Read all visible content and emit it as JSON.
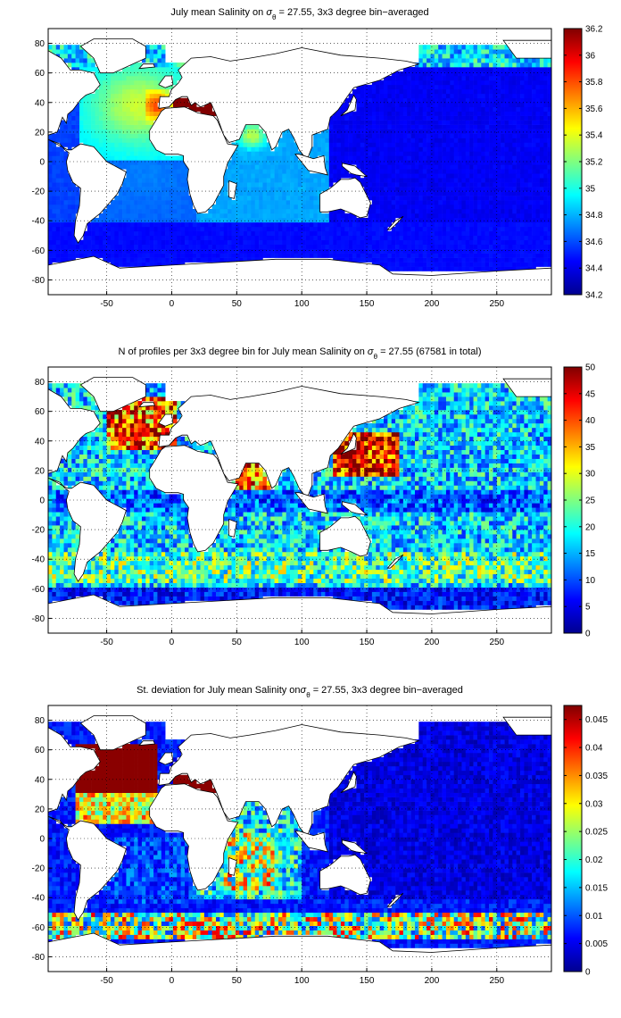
{
  "chart_data": [
    {
      "type": "heatmap",
      "title_parts": [
        "July mean Salinity on ",
        "σ",
        "θ",
        " = 27.55, 3x3 degree bin−averaged"
      ],
      "xlim": [
        -95,
        292
      ],
      "ylim": [
        -90,
        90
      ],
      "xticks": [
        "-50",
        "0",
        "50",
        "100",
        "150",
        "200",
        "250"
      ],
      "yticks": [
        "80",
        "60",
        "40",
        "20",
        "0",
        "-20",
        "-40",
        "-60",
        "-80"
      ],
      "colorbar": {
        "min": 34.2,
        "max": 36.2,
        "ticks": [
          "36.2",
          "36",
          "35.8",
          "35.6",
          "35.4",
          "35.2",
          "35",
          "34.8",
          "34.6",
          "34.4",
          "34.2"
        ]
      },
      "bin_size_deg": 3,
      "regions": [
        {
          "name": "North Atlantic",
          "approx_value": 35.2
        },
        {
          "name": "Mediterranean outflow",
          "approx_value": 35.9
        },
        {
          "name": "Mediterranean Sea",
          "approx_value": 36.2
        },
        {
          "name": "Red Sea",
          "approx_value": 36.2
        },
        {
          "name": "Arabian Sea",
          "approx_value": 35.4
        },
        {
          "name": "Indian Ocean",
          "approx_value": 34.8
        },
        {
          "name": "South Atlantic",
          "approx_value": 34.7
        },
        {
          "name": "Southern Ocean",
          "approx_value": 34.4
        },
        {
          "name": "Pacific Ocean",
          "approx_value": 34.4
        }
      ]
    },
    {
      "type": "heatmap",
      "title_parts": [
        "N of profiles per 3x3 degree bin for July mean Salinity on ",
        "σ",
        "θ",
        " = 27.55 (67581 in total)"
      ],
      "xlim": [
        -95,
        292
      ],
      "ylim": [
        -90,
        90
      ],
      "xticks": [
        "-50",
        "0",
        "50",
        "100",
        "150",
        "200",
        "250"
      ],
      "yticks": [
        "80",
        "60",
        "40",
        "20",
        "0",
        "-20",
        "-40",
        "-60",
        "-80"
      ],
      "colorbar": {
        "min": 0,
        "max": 50,
        "ticks": [
          "50",
          "45",
          "40",
          "35",
          "30",
          "25",
          "20",
          "15",
          "10",
          "5",
          "0"
        ]
      },
      "bin_size_deg": 3,
      "regions": [
        {
          "name": "North Atlantic",
          "approx_value": 40
        },
        {
          "name": "Kuroshio region",
          "approx_value": 45
        },
        {
          "name": "Arabian Sea",
          "approx_value": 35
        },
        {
          "name": "Southern Ocean",
          "approx_value": 20
        },
        {
          "name": "Equatorial Pacific",
          "approx_value": 10
        }
      ]
    },
    {
      "type": "heatmap",
      "title_parts": [
        "St. deviation for July mean Salinity on",
        "σ",
        "θ",
        " = 27.55, 3x3 degree bin−averaged"
      ],
      "xlim": [
        -95,
        292
      ],
      "ylim": [
        -90,
        90
      ],
      "xticks": [
        "-50",
        "0",
        "50",
        "100",
        "150",
        "200",
        "250"
      ],
      "yticks": [
        "80",
        "60",
        "40",
        "20",
        "0",
        "-20",
        "-40",
        "-60",
        "-80"
      ],
      "colorbar": {
        "min": 0,
        "max": 0.0475,
        "ticks": [
          "0.045",
          "0.04",
          "0.035",
          "0.03",
          "0.025",
          "0.02",
          "0.015",
          "0.01",
          "0.005",
          "0"
        ]
      },
      "bin_size_deg": 3,
      "regions": [
        {
          "name": "North Atlantic",
          "approx_value": 0.047
        },
        {
          "name": "Mediterranean Sea",
          "approx_value": 0.047
        },
        {
          "name": "Antarctic Circumpolar band",
          "approx_value": 0.03
        },
        {
          "name": "Indian Ocean",
          "approx_value": 0.012
        },
        {
          "name": "Pacific Ocean",
          "approx_value": 0.004
        }
      ]
    }
  ]
}
